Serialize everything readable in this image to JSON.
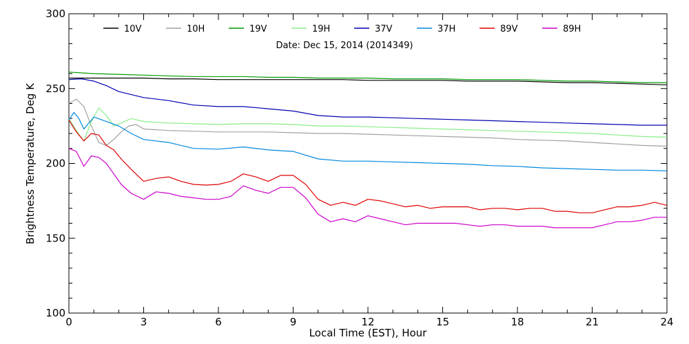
{
  "chart_data": {
    "type": "line",
    "annotation": "Date: Dec 15, 2014 (2014349)",
    "xlabel": "Local Time (EST), Hour",
    "ylabel": "Brightness Temperature, Deg K",
    "xlim": [
      0,
      24
    ],
    "ylim": [
      100,
      300
    ],
    "x_ticks": [
      "0",
      "3",
      "6",
      "9",
      "12",
      "15",
      "18",
      "21",
      "24"
    ],
    "y_ticks": [
      "100",
      "150",
      "200",
      "250",
      "300"
    ],
    "grid": false,
    "legend_position": "top",
    "series": [
      {
        "name": "10V",
        "color": "#000000",
        "x": [
          0,
          1,
          2,
          3,
          4,
          5,
          6,
          7,
          8,
          9,
          10,
          11,
          12,
          13,
          14,
          15,
          16,
          17,
          18,
          19,
          20,
          21,
          22,
          23,
          24
        ],
        "y": [
          257,
          257,
          257,
          257,
          256.5,
          256.5,
          256,
          256,
          256,
          256,
          256,
          256,
          255.5,
          255.5,
          255.5,
          255.5,
          255,
          255,
          255,
          254.5,
          254,
          254,
          253.5,
          253,
          252.5
        ]
      },
      {
        "name": "10H",
        "color": "#a0a0a0",
        "x": [
          0,
          0.3,
          0.6,
          0.9,
          1.2,
          1.5,
          1.8,
          2.1,
          2.4,
          2.7,
          3,
          4,
          5,
          6,
          7,
          8,
          9,
          10,
          11,
          12,
          13,
          14,
          15,
          16,
          17,
          18,
          19,
          20,
          21,
          22,
          23,
          24
        ],
        "y": [
          240,
          243,
          238,
          225,
          214,
          212,
          216,
          221,
          225,
          226,
          223,
          222,
          221.5,
          221,
          221,
          221,
          220.5,
          220,
          220,
          219.5,
          219,
          218.5,
          218,
          217.5,
          217,
          216,
          215.5,
          215,
          214,
          213,
          212,
          211.5
        ]
      },
      {
        "name": "19V",
        "color": "#009900",
        "x": [
          0,
          1,
          2,
          3,
          4,
          5,
          6,
          7,
          8,
          9,
          10,
          11,
          12,
          13,
          14,
          15,
          16,
          17,
          18,
          19,
          20,
          21,
          22,
          23,
          24
        ],
        "y": [
          261,
          260,
          259.5,
          259,
          258.5,
          258,
          258,
          258,
          257.5,
          257.5,
          257,
          257,
          257,
          256.5,
          256.5,
          256.5,
          256,
          256,
          256,
          255.5,
          255,
          255,
          254.5,
          254,
          254
        ]
      },
      {
        "name": "19H",
        "color": "#88ee88",
        "x": [
          0,
          0.3,
          0.6,
          0.9,
          1.2,
          1.5,
          1.8,
          2.1,
          2.5,
          3,
          4,
          5,
          6,
          7,
          8,
          9,
          10,
          11,
          12,
          13,
          14,
          15,
          16,
          17,
          18,
          19,
          20,
          21,
          22,
          23,
          24
        ],
        "y": [
          230,
          222,
          215,
          228,
          237,
          232,
          225,
          227,
          230,
          228,
          227,
          226.5,
          226,
          226.5,
          226.5,
          226,
          225,
          225,
          224.5,
          224,
          223.5,
          223,
          222.5,
          222,
          221.5,
          221,
          220.5,
          220,
          219,
          218,
          217.5
        ]
      },
      {
        "name": "37V",
        "color": "#0000b0",
        "x": [
          0,
          0.5,
          1,
          1.5,
          2,
          3,
          4,
          5,
          6,
          7,
          8,
          9,
          10,
          11,
          12,
          13,
          14,
          15,
          16,
          17,
          18,
          19,
          20,
          21,
          22,
          23,
          24
        ],
        "y": [
          256,
          256.5,
          255,
          252,
          248,
          244,
          242,
          239,
          238,
          238,
          236.5,
          235,
          232,
          231,
          231,
          230.5,
          230,
          229.5,
          229,
          228.5,
          228,
          227.5,
          227,
          226.5,
          226,
          225.5,
          225.5
        ]
      },
      {
        "name": "37H",
        "color": "#0088dd",
        "x": [
          0,
          0.2,
          0.4,
          0.6,
          0.8,
          1,
          1.5,
          2,
          2.5,
          3,
          4,
          5,
          6,
          7,
          8,
          9,
          10,
          11,
          12,
          13,
          14,
          15,
          16,
          17,
          18,
          19,
          20,
          21,
          22,
          23,
          24
        ],
        "y": [
          229,
          234,
          230,
          223,
          227,
          231,
          228,
          225,
          220,
          216,
          214,
          210,
          209.5,
          211,
          209,
          208,
          203,
          201.5,
          201.5,
          201,
          200.5,
          200,
          199.5,
          198.5,
          198,
          197,
          196.5,
          196,
          195.5,
          195.5,
          195
        ]
      },
      {
        "name": "89V",
        "color": "#dd0000",
        "x": [
          0,
          0.3,
          0.6,
          0.9,
          1.2,
          1.5,
          1.8,
          2.1,
          2.5,
          3,
          3.5,
          4,
          4.5,
          5,
          5.5,
          6,
          6.5,
          7,
          7.5,
          8,
          8.5,
          9,
          9.5,
          10,
          10.5,
          11,
          11.5,
          12,
          12.5,
          13,
          13.5,
          14,
          14.5,
          15,
          15.5,
          16,
          16.5,
          17,
          17.5,
          18,
          18.5,
          19,
          19.5,
          20,
          20.5,
          21,
          21.5,
          22,
          22.5,
          23,
          23.5,
          24
        ],
        "y": [
          229,
          221,
          215,
          220,
          219,
          212,
          209,
          203,
          196,
          188,
          190,
          191,
          188,
          186,
          185.5,
          186,
          188,
          193,
          191,
          188,
          192,
          192,
          186,
          176,
          172,
          174,
          172,
          176,
          175,
          173,
          171,
          172,
          170,
          171,
          171,
          171,
          169,
          170,
          170,
          169,
          170,
          170,
          168,
          168,
          167,
          167,
          169,
          171,
          171,
          172,
          174,
          172
        ]
      },
      {
        "name": "89H",
        "color": "#cc00cc",
        "x": [
          0,
          0.3,
          0.6,
          0.9,
          1.2,
          1.5,
          1.8,
          2.1,
          2.5,
          3,
          3.5,
          4,
          4.5,
          5,
          5.5,
          6,
          6.5,
          7,
          7.5,
          8,
          8.5,
          9,
          9.5,
          10,
          10.5,
          11,
          11.5,
          12,
          12.5,
          13,
          13.5,
          14,
          14.5,
          15,
          15.5,
          16,
          16.5,
          17,
          17.5,
          18,
          18.5,
          19,
          19.5,
          20,
          20.5,
          21,
          21.5,
          22,
          22.5,
          23,
          23.5,
          24
        ],
        "y": [
          210,
          208,
          198,
          205,
          204,
          200,
          193,
          186,
          180,
          176,
          181,
          180,
          178,
          177,
          176,
          176,
          178,
          185,
          182,
          180,
          184,
          184,
          177,
          166,
          161,
          163,
          161,
          165,
          163,
          161,
          159,
          160,
          160,
          160,
          160,
          159,
          158,
          159,
          159,
          158,
          158,
          158,
          157,
          157,
          157,
          157,
          159,
          161,
          161,
          162,
          164,
          164
        ]
      }
    ]
  }
}
